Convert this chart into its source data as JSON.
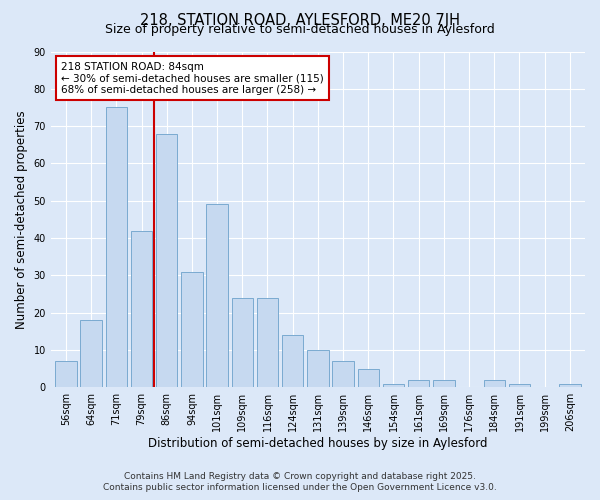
{
  "title": "218, STATION ROAD, AYLESFORD, ME20 7JH",
  "subtitle": "Size of property relative to semi-detached houses in Aylesford",
  "xlabel": "Distribution of semi-detached houses by size in Aylesford",
  "ylabel": "Number of semi-detached properties",
  "bar_labels": [
    "56sqm",
    "64sqm",
    "71sqm",
    "79sqm",
    "86sqm",
    "94sqm",
    "101sqm",
    "109sqm",
    "116sqm",
    "124sqm",
    "131sqm",
    "139sqm",
    "146sqm",
    "154sqm",
    "161sqm",
    "169sqm",
    "176sqm",
    "184sqm",
    "191sqm",
    "199sqm",
    "206sqm"
  ],
  "bar_values": [
    7,
    18,
    75,
    42,
    68,
    31,
    49,
    24,
    24,
    14,
    10,
    7,
    5,
    1,
    2,
    2,
    0,
    2,
    1,
    0,
    1
  ],
  "bar_color": "#c6d9f0",
  "bar_edge_color": "#7aaad0",
  "vline_x_idx": 3.5,
  "annotation_title": "218 STATION ROAD: 84sqm",
  "annotation_line1": "← 30% of semi-detached houses are smaller (115)",
  "annotation_line2": "68% of semi-detached houses are larger (258) →",
  "annotation_box_color": "#ffffff",
  "annotation_box_edge": "#cc0000",
  "vline_color": "#cc0000",
  "ylim": [
    0,
    90
  ],
  "yticks": [
    0,
    10,
    20,
    30,
    40,
    50,
    60,
    70,
    80,
    90
  ],
  "footer_line1": "Contains HM Land Registry data © Crown copyright and database right 2025.",
  "footer_line2": "Contains public sector information licensed under the Open Government Licence v3.0.",
  "background_color": "#dce8f8",
  "plot_bg_color": "#dce8f8",
  "title_fontsize": 10.5,
  "subtitle_fontsize": 9,
  "axis_label_fontsize": 8.5,
  "tick_fontsize": 7,
  "annotation_fontsize": 7.5,
  "footer_fontsize": 6.5
}
